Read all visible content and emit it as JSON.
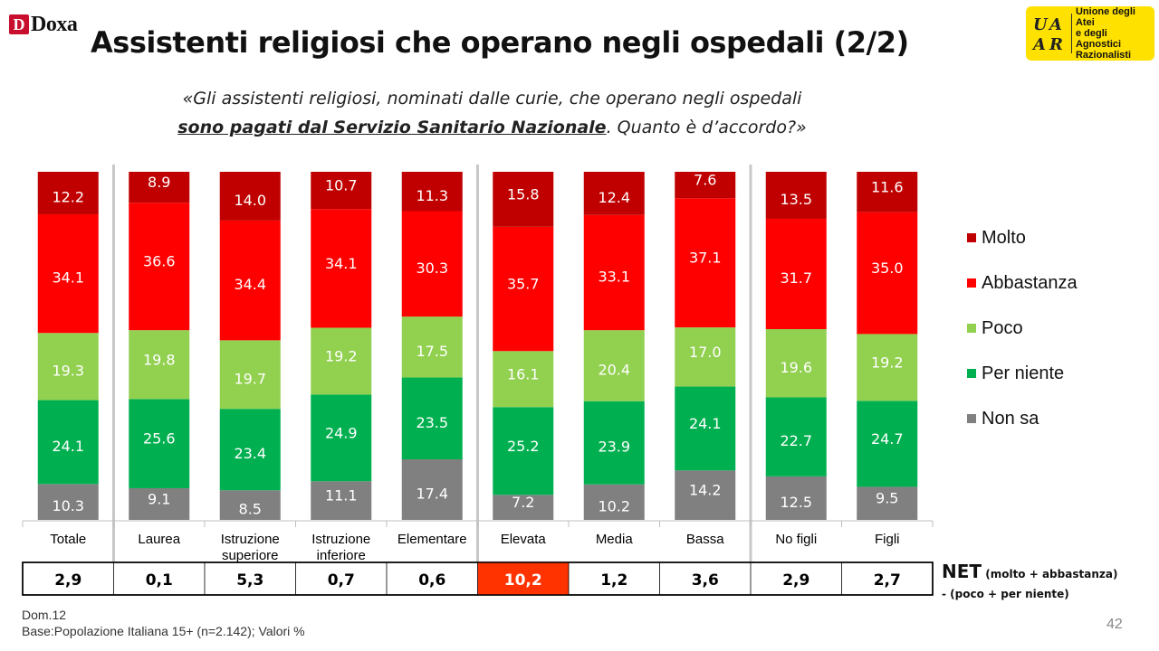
{
  "header": {
    "logo_text": "Doxa",
    "logo_mark": "D",
    "title": "Assistenti religiosi che operano negli ospedali (2/2)",
    "uaar_logo_letters": "UAAR",
    "uaar_line1": "Unione degli Atei",
    "uaar_line2": "e degli Agnostici",
    "uaar_line3": "Razionalisti"
  },
  "question": {
    "line1": "«Gli assistenti religiosi, nominati dalle curie, che operano negli ospedali",
    "line2_bold": "sono pagati dal Servizio Sanitario Nazionale",
    "line2_rest": ". Quanto è d’accordo?»"
  },
  "colors": {
    "molto": "#c00000",
    "abbastanza": "#ff0000",
    "poco": "#92d050",
    "per_niente": "#00b050",
    "non_sa": "#808080",
    "highlight": "#ff3300"
  },
  "chart_data": {
    "type": "bar",
    "stacked": true,
    "categories": [
      "Totale",
      "Laurea",
      "Istruzione superiore",
      "Istruzione inferiore",
      "Elementare",
      "Elevata",
      "Media",
      "Bassa",
      "No figli",
      "Figli"
    ],
    "category_lines": [
      [
        "Totale"
      ],
      [
        "Laurea"
      ],
      [
        "Istruzione",
        "superiore"
      ],
      [
        "Istruzione",
        "inferiore"
      ],
      [
        "Elementare"
      ],
      [
        "Elevata"
      ],
      [
        "Media"
      ],
      [
        "Bassa"
      ],
      [
        "No figli"
      ],
      [
        "Figli"
      ]
    ],
    "series": [
      {
        "name": "Non sa",
        "key": "non_sa",
        "values": [
          10.3,
          9.1,
          8.5,
          11.1,
          17.4,
          7.2,
          10.2,
          14.2,
          12.5,
          9.5
        ],
        "labels": [
          "10.3",
          "9.1",
          "8.5",
          "11.1",
          "17.4",
          "7.2",
          "10.2",
          "14.2",
          "12.5",
          "9.5"
        ]
      },
      {
        "name": "Per niente",
        "key": "per_niente",
        "values": [
          24.1,
          25.6,
          23.4,
          24.9,
          23.5,
          25.2,
          23.9,
          24.1,
          22.7,
          24.7
        ],
        "labels": [
          "24.1",
          "25.6",
          "23.4",
          "24.9",
          "23.5",
          "25.2",
          "23.9",
          "24.1",
          "22.7",
          "24.7"
        ]
      },
      {
        "name": "Poco",
        "key": "poco",
        "values": [
          19.3,
          19.8,
          19.7,
          19.2,
          17.5,
          16.1,
          20.4,
          17.0,
          19.6,
          19.2
        ],
        "labels": [
          "19.3",
          "19.8",
          "19.7",
          "19.2",
          "17.5",
          "16.1",
          "20.4",
          "17.0",
          "19.6",
          "19.2"
        ]
      },
      {
        "name": "Abbastanza",
        "key": "abbastanza",
        "values": [
          34.1,
          36.6,
          34.4,
          34.1,
          30.3,
          35.7,
          33.1,
          37.1,
          31.7,
          35.0
        ],
        "labels": [
          "34.1",
          "36.6",
          "34.4",
          "34.1",
          "30.3",
          "35.7",
          "33.1",
          "37.1",
          "31.7",
          "35.0"
        ]
      },
      {
        "name": "Molto",
        "key": "molto",
        "values": [
          12.2,
          8.9,
          14.0,
          10.7,
          11.3,
          15.8,
          12.4,
          7.6,
          13.5,
          11.6
        ],
        "labels": [
          "12.2",
          "8.9",
          "14.0",
          "10.7",
          "11.3",
          "15.8",
          "12.4",
          "7.6",
          "13.5",
          "11.6"
        ]
      }
    ],
    "ylim": [
      0,
      100
    ],
    "legend_order": [
      "Molto",
      "Abbastanza",
      "Poco",
      "Per niente",
      "Non sa"
    ],
    "legend_position": "right",
    "net_values": [
      "2,9",
      "0,1",
      "5,3",
      "0,7",
      "0,6",
      "10,2",
      "1,2",
      "3,6",
      "2,9",
      "2,7"
    ],
    "net_highlight_index": 5
  },
  "net": {
    "label_big": "NET",
    "label_small": " (molto + abbastanza)",
    "label_line2": "- (poco + per niente)"
  },
  "footer": {
    "line1": "Dom.12",
    "line2": "Base:Popolazione Italiana 15+ (n=2.142); Valori %",
    "page": "42"
  }
}
